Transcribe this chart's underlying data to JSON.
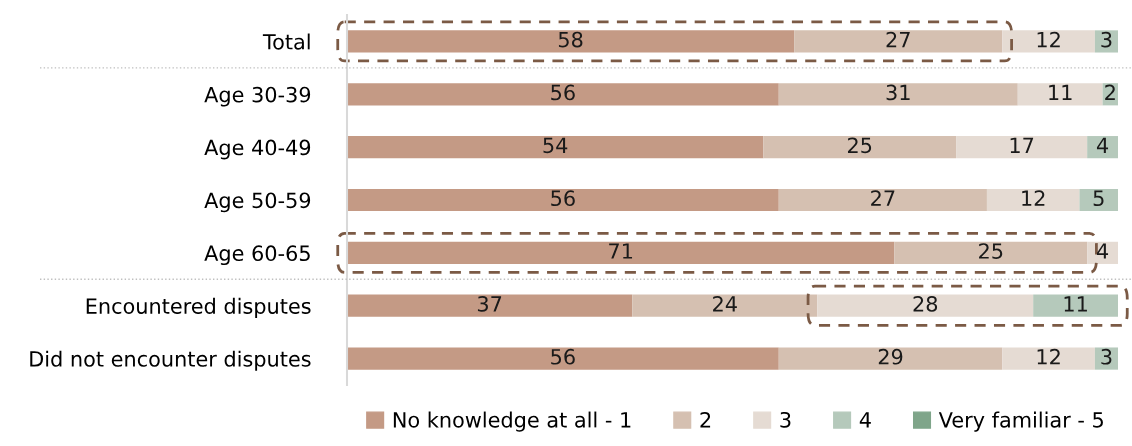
{
  "chart_data": {
    "type": "bar",
    "orientation": "horizontal",
    "stacked": true,
    "data_labels": true,
    "grid": false,
    "legend": "bottom",
    "tick_labels": "y",
    "categories": [
      "Total",
      "Age 30-39",
      "Age 40-49",
      "Age 50-59",
      "Age 60-65",
      "Encountered disputes",
      "Did not encounter disputes"
    ],
    "series": [
      {
        "name": "No knowledge at all - 1",
        "color": "#c49a85",
        "values": [
          58,
          56,
          54,
          56,
          71,
          37,
          56
        ]
      },
      {
        "name": "2",
        "color": "#d5c0b1",
        "values": [
          27,
          31,
          25,
          27,
          25,
          24,
          29
        ]
      },
      {
        "name": "3",
        "color": "#e5dbd3",
        "values": [
          12,
          11,
          17,
          12,
          4,
          28,
          12
        ]
      },
      {
        "name": "4",
        "color": "#b5c9bb",
        "values": [
          3,
          2,
          4,
          5,
          null,
          11,
          3
        ]
      },
      {
        "name": "Very familiar - 5",
        "color": "#7fa58a",
        "values": [
          null,
          null,
          null,
          null,
          null,
          null,
          null
        ]
      }
    ]
  }
}
